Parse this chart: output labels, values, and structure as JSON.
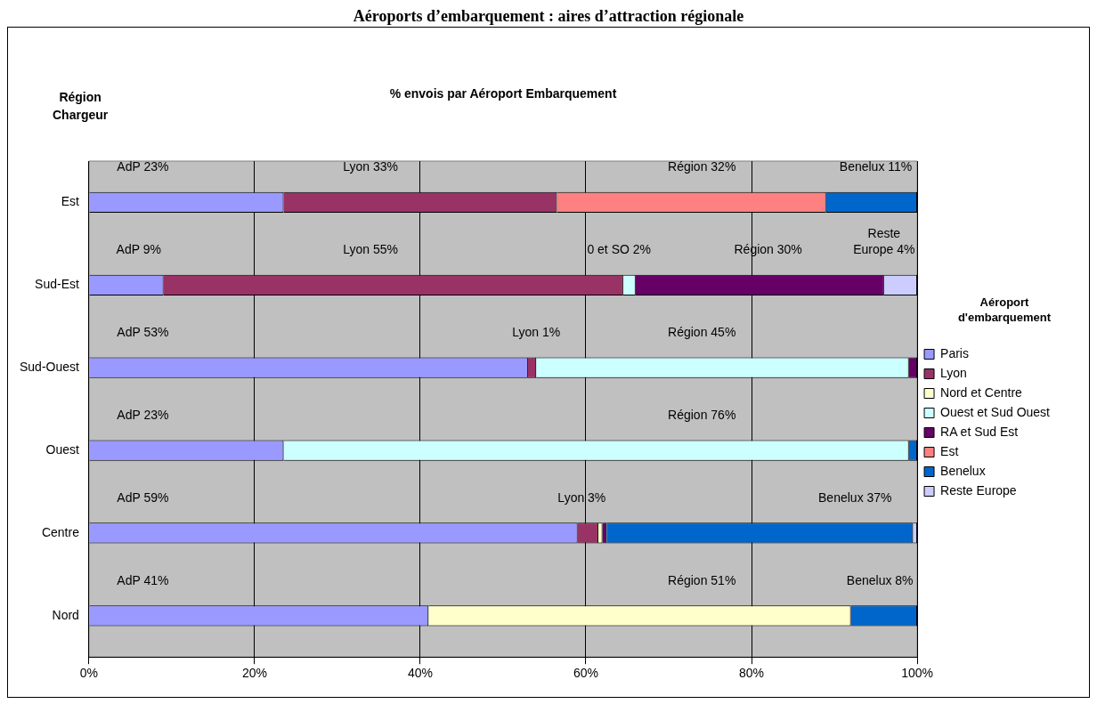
{
  "chart_data": {
    "type": "bar",
    "orientation": "horizontal",
    "stacked": true,
    "title": "Aéroports d’embarquement : aires d’attraction régionale",
    "subtitle": "% envois par Aéroport Embarquement",
    "ylabel": "Région Chargeur",
    "legend_title": "Aéroport d'embarquement",
    "legend": "right",
    "grid": "x",
    "categories": [
      "Est",
      "Sud-Est",
      "Sud-Ouest",
      "Ouest",
      "Centre",
      "Nord"
    ],
    "xlim": [
      0,
      100
    ],
    "xticks": [
      {
        "value": 0,
        "label": "0%"
      },
      {
        "value": 20,
        "label": "20%"
      },
      {
        "value": 40,
        "label": "40%"
      },
      {
        "value": 60,
        "label": "60%"
      },
      {
        "value": 80,
        "label": "80%"
      },
      {
        "value": 100,
        "label": "100%"
      }
    ],
    "series": [
      {
        "name": "Paris",
        "color": "#9999ff",
        "values": [
          23.5,
          9,
          53,
          23.5,
          59,
          41
        ]
      },
      {
        "name": "Lyon",
        "color": "#993366",
        "values": [
          33,
          55.5,
          1,
          null,
          2.5,
          null
        ]
      },
      {
        "name": "Nord et Centre",
        "color": "#ffffcc",
        "values": [
          null,
          null,
          null,
          null,
          0.5,
          51
        ]
      },
      {
        "name": "Ouest et Sud Ouest",
        "color": "#ccffff",
        "values": [
          null,
          1.5,
          45,
          75.5,
          null,
          null
        ]
      },
      {
        "name": "RA et Sud Est",
        "color": "#660066",
        "values": [
          null,
          30,
          1,
          null,
          0.5,
          null
        ]
      },
      {
        "name": "Est",
        "color": "#ff8080",
        "values": [
          32.5,
          null,
          null,
          null,
          null,
          null
        ]
      },
      {
        "name": "Benelux",
        "color": "#0066cc",
        "values": [
          11,
          null,
          null,
          1,
          37,
          8
        ]
      },
      {
        "name": "Reste Europe",
        "color": "#ccccff",
        "values": [
          null,
          4,
          null,
          null,
          0.5,
          null
        ]
      }
    ],
    "annotations": [
      "AdP 23%",
      "Lyon 33%",
      "Région 32%",
      "Benelux 11%",
      "AdP 9%",
      "Lyon 55%",
      "0 et SO 2%",
      "Région 30%",
      "Reste\nEurope 4%",
      "AdP 53%",
      "Lyon 1%",
      "Région 45%",
      "AdP 23%",
      "Région 76%",
      "AdP 59%",
      "Lyon 3%",
      "Benelux 37%",
      "AdP 41%",
      "Région 51%",
      "Benelux 8%"
    ]
  }
}
